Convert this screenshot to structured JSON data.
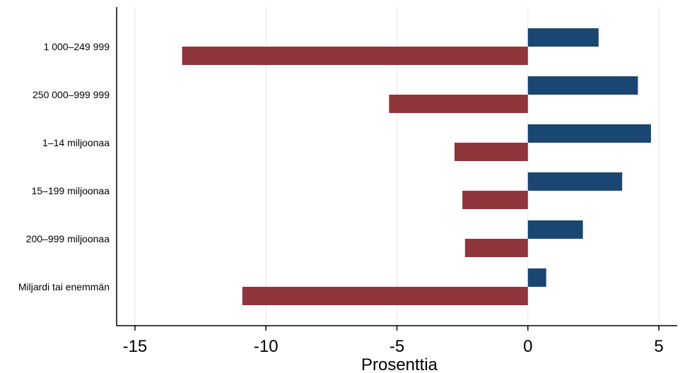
{
  "chart_data": {
    "type": "bar",
    "orientation": "horizontal",
    "categories": [
      "1 000–249 999",
      "250 000–999 999",
      "1–14 miljoonaa",
      "15–199 miljoonaa",
      "200–999 miljoonaa",
      "Miljardi tai enemmän"
    ],
    "series": [
      {
        "values": [
          2.7,
          4.2,
          4.7,
          3.6,
          2.1,
          0.7
        ],
        "color": "#1a4672"
      },
      {
        "values": [
          -13.2,
          -5.3,
          -2.8,
          -2.5,
          -2.4,
          -10.9
        ],
        "color": "#8f353c"
      }
    ],
    "xlabel": "Prosenttia",
    "xlim": [
      -15.7,
      5.7
    ],
    "xticks": [
      -15,
      -10,
      -5,
      0,
      5
    ],
    "xtick_labels": [
      "-15",
      "-10",
      "-5",
      "0",
      "5"
    ],
    "grid": true,
    "grid_color": "#e6ecef",
    "legend": "none"
  }
}
